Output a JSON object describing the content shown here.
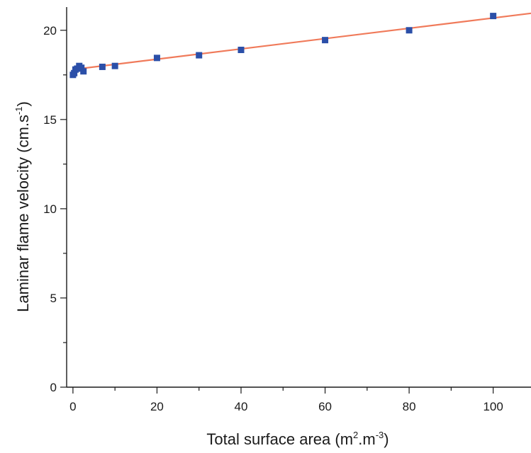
{
  "chart_data": {
    "type": "scatter",
    "xlabel": "Total surface area (m².m⁻³)",
    "xlabel_parts": {
      "pre": "Total surface area (m",
      "sup1": "2",
      "mid": ".m",
      "sup2": "-3",
      "post": ")"
    },
    "ylabel": "Laminar flame velocity (cm.s⁻¹)",
    "ylabel_parts": {
      "pre": "Laminar flame velocity (cm.s",
      "sup": "-1",
      "post": ")"
    },
    "xlim": [
      -1.5,
      109
    ],
    "ylim": [
      0,
      21.3
    ],
    "x_ticks": [
      0,
      20,
      40,
      60,
      80,
      100
    ],
    "x_minor_ticks": [
      10,
      30,
      50,
      70,
      90
    ],
    "y_ticks": [
      0,
      5,
      10,
      15,
      20
    ],
    "y_minor_ticks": [
      2.5,
      7.5,
      12.5,
      17.5
    ],
    "grid": false,
    "series": [
      {
        "marker": "square",
        "color": "#2b4fa8",
        "x": [
          0,
          0.3,
          0.6,
          1,
          1.5,
          2,
          2.5,
          7,
          10,
          20,
          30,
          40,
          60,
          80,
          100
        ],
        "y": [
          17.5,
          17.6,
          17.8,
          17.85,
          18.0,
          17.9,
          17.7,
          17.95,
          18.0,
          18.45,
          18.6,
          18.9,
          19.45,
          20.0,
          20.8
        ]
      }
    ],
    "fit_line": {
      "color": "#f07a5a",
      "x": [
        0,
        109
      ],
      "y": [
        17.8,
        20.95
      ]
    }
  }
}
